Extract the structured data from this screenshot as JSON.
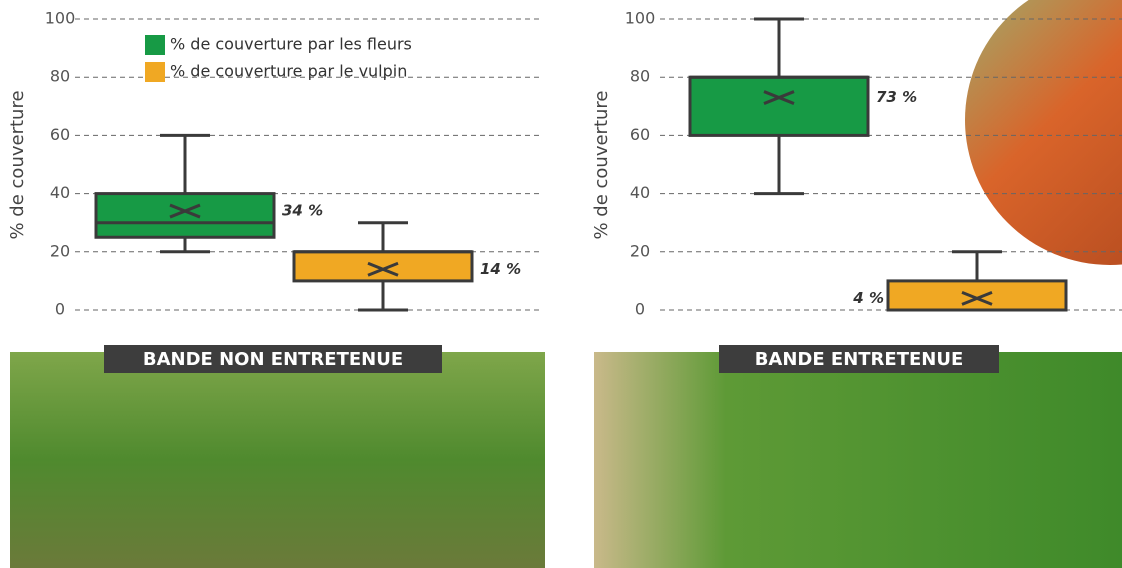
{
  "chart_data": [
    {
      "type": "box",
      "ylabel": "% de couverture",
      "ylim": [
        0,
        100
      ],
      "yticks": [
        0,
        20,
        40,
        60,
        80,
        100
      ],
      "grid": true,
      "legend": "top",
      "series": [
        {
          "name": "% de couverture par les fleurs",
          "color": "#179a45",
          "min": 20,
          "q1": 25,
          "median": 30,
          "q3": 40,
          "max": 60,
          "mean": 34,
          "mean_label": "34 %"
        },
        {
          "name": "% de couverture par le vulpin",
          "color": "#f0a823",
          "min": 0,
          "q1": 10,
          "median": 20,
          "q3": 20,
          "max": 30,
          "mean": 14,
          "mean_label": "14 %"
        }
      ]
    },
    {
      "type": "box",
      "ylabel": "% de couverture",
      "ylim": [
        0,
        100
      ],
      "yticks": [
        0,
        20,
        40,
        60,
        80,
        100
      ],
      "grid": true,
      "series": [
        {
          "color": "#179a45",
          "min": 40,
          "q1": 60,
          "median": 80,
          "q3": 80,
          "max": 100,
          "mean": 73,
          "mean_label": "73 %"
        },
        {
          "color": "#f0a823",
          "min": 0,
          "q1": 0,
          "median": 0,
          "q3": 10,
          "max": 20,
          "mean": 4,
          "mean_label": "4 %"
        }
      ]
    }
  ],
  "photos": [
    {
      "caption": "BANDE NON ENTRETENUE"
    },
    {
      "caption": "BANDE ENTRETENUE"
    }
  ]
}
